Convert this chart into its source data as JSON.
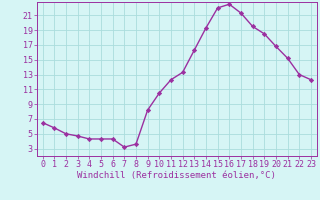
{
  "x": [
    0,
    1,
    2,
    3,
    4,
    5,
    6,
    7,
    8,
    9,
    10,
    11,
    12,
    13,
    14,
    15,
    16,
    17,
    18,
    19,
    20,
    21,
    22,
    23
  ],
  "y": [
    6.5,
    5.8,
    5.0,
    4.7,
    4.3,
    4.3,
    4.3,
    3.2,
    3.6,
    8.2,
    10.5,
    12.3,
    13.3,
    16.3,
    19.3,
    22.0,
    22.5,
    21.3,
    19.5,
    18.5,
    16.8,
    15.2,
    13.0,
    12.3
  ],
  "line_color": "#9B30A0",
  "marker": "D",
  "markersize": 2.2,
  "linewidth": 1.0,
  "bg_color": "#d6f5f5",
  "grid_color": "#aadddd",
  "xlabel": "Windchill (Refroidissement éolien,°C)",
  "xlim": [
    -0.5,
    23.5
  ],
  "ylim": [
    2.0,
    22.8
  ],
  "yticks": [
    3,
    5,
    7,
    9,
    11,
    13,
    15,
    17,
    19,
    21
  ],
  "xticks": [
    0,
    1,
    2,
    3,
    4,
    5,
    6,
    7,
    8,
    9,
    10,
    11,
    12,
    13,
    14,
    15,
    16,
    17,
    18,
    19,
    20,
    21,
    22,
    23
  ],
  "tick_color": "#9B30A0",
  "label_fontsize": 6.0,
  "axis_label_fontsize": 6.5
}
